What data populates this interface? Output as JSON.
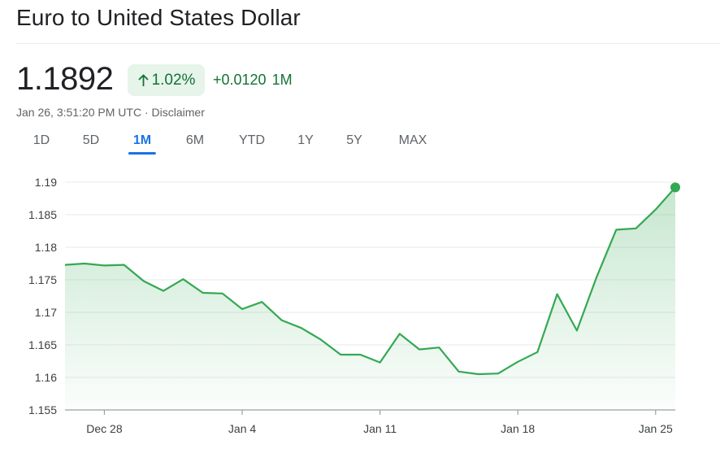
{
  "header": {
    "title": "Euro to United States Dollar"
  },
  "quote": {
    "price": "1.1892",
    "percent_change": "1.02%",
    "abs_change": "+0.0120",
    "period": "1M",
    "timestamp": "Jan 26, 3:51:20 PM UTC",
    "separator": " · ",
    "disclaimer": "Disclaimer",
    "up_color": "#137333",
    "badge_bg": "#e6f4ea"
  },
  "tabs": [
    {
      "label": "1D",
      "active": false
    },
    {
      "label": "5D",
      "active": false
    },
    {
      "label": "1M",
      "active": true
    },
    {
      "label": "6M",
      "active": false
    },
    {
      "label": "YTD",
      "active": false
    },
    {
      "label": "1Y",
      "active": false
    },
    {
      "label": "5Y",
      "active": false
    },
    {
      "label": "MAX",
      "active": false
    }
  ],
  "chart_data": {
    "type": "area",
    "title": "",
    "xlabel": "",
    "ylabel": "",
    "ylim": [
      1.155,
      1.19
    ],
    "y_ticks": [
      "1.19",
      "1.185",
      "1.18",
      "1.175",
      "1.17",
      "1.165",
      "1.16",
      "1.155"
    ],
    "y_tick_values": [
      1.19,
      1.185,
      1.18,
      1.175,
      1.17,
      1.165,
      1.16,
      1.155
    ],
    "xlim": [
      "Dec 26",
      "Jan 26"
    ],
    "x_ticks": [
      {
        "label": "Dec 28",
        "date": "Dec 28"
      },
      {
        "label": "Jan 4",
        "date": "Jan 4"
      },
      {
        "label": "Jan 11",
        "date": "Jan 11"
      },
      {
        "label": "Jan 18",
        "date": "Jan 18"
      },
      {
        "label": "Jan 25",
        "date": "Jan 25"
      }
    ],
    "grid": true,
    "line_color": "#34a853",
    "series": [
      {
        "x": [
          "Dec 26",
          "Dec 27",
          "Dec 28",
          "Dec 29",
          "Dec 30",
          "Dec 31",
          "Jan 1",
          "Jan 2",
          "Jan 3",
          "Jan 4",
          "Jan 5",
          "Jan 6",
          "Jan 7",
          "Jan 8",
          "Jan 9",
          "Jan 10",
          "Jan 11",
          "Jan 12",
          "Jan 13",
          "Jan 14",
          "Jan 15",
          "Jan 16",
          "Jan 17",
          "Jan 18",
          "Jan 19",
          "Jan 20",
          "Jan 21",
          "Jan 22",
          "Jan 23",
          "Jan 24",
          "Jan 25",
          "Jan 26"
        ],
        "values": [
          1.1773,
          1.1775,
          1.1772,
          1.1773,
          1.1748,
          1.1733,
          1.1751,
          1.173,
          1.1729,
          1.1705,
          1.1716,
          1.1688,
          1.1676,
          1.1658,
          1.1635,
          1.1635,
          1.1623,
          1.1667,
          1.1643,
          1.1646,
          1.1609,
          1.1605,
          1.1606,
          1.1624,
          1.1639,
          1.1728,
          1.1672,
          1.1754,
          1.1827,
          1.1829,
          1.1858,
          1.1892
        ]
      }
    ]
  }
}
